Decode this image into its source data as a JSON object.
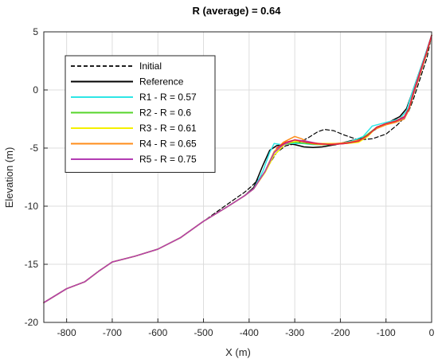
{
  "chart_data": {
    "type": "line",
    "title": "R (average) = 0.64",
    "xlabel": "X (m)",
    "ylabel": "Elevation (m)",
    "xlim": [
      -850,
      0
    ],
    "ylim": [
      -20,
      5
    ],
    "xticks": [
      -800,
      -700,
      -600,
      -500,
      -400,
      -300,
      -200,
      -100,
      0
    ],
    "yticks": [
      -20,
      -15,
      -10,
      -5,
      0,
      5
    ],
    "xtick_labels": [
      "-800",
      "-700",
      "-600",
      "-500",
      "-400",
      "-300",
      "-200",
      "-100",
      "0"
    ],
    "ytick_labels": [
      "-20",
      "-15",
      "-10",
      "-5",
      "0",
      "5"
    ],
    "grid": true,
    "legend_position": "top-left",
    "series": [
      {
        "name": "Initial",
        "color": "#000000",
        "dash": true,
        "width": 1.2,
        "points": [
          [
            -850,
            -18.3
          ],
          [
            -800,
            -17.1
          ],
          [
            -760,
            -16.5
          ],
          [
            -730,
            -15.6
          ],
          [
            -700,
            -14.8
          ],
          [
            -650,
            -14.3
          ],
          [
            -600,
            -13.7
          ],
          [
            -550,
            -12.7
          ],
          [
            -500,
            -11.3
          ],
          [
            -450,
            -9.9
          ],
          [
            -410,
            -8.8
          ],
          [
            -395,
            -8.3
          ],
          [
            -370,
            -7.3
          ],
          [
            -340,
            -5.4
          ],
          [
            -320,
            -4.8
          ],
          [
            -295,
            -4.6
          ],
          [
            -270,
            -4.1
          ],
          [
            -250,
            -3.6
          ],
          [
            -235,
            -3.4
          ],
          [
            -215,
            -3.5
          ],
          [
            -190,
            -3.9
          ],
          [
            -160,
            -4.3
          ],
          [
            -130,
            -4.2
          ],
          [
            -100,
            -3.8
          ],
          [
            -75,
            -3.0
          ],
          [
            -60,
            -2.4
          ],
          [
            -50,
            -1.8
          ],
          [
            -40,
            -0.8
          ],
          [
            -25,
            1.0
          ],
          [
            -10,
            2.8
          ],
          [
            0,
            4.7
          ]
        ]
      },
      {
        "name": "Reference",
        "color": "#000000",
        "dash": false,
        "width": 1.5,
        "points": [
          [
            -850,
            -18.3
          ],
          [
            -800,
            -17.1
          ],
          [
            -760,
            -16.5
          ],
          [
            -730,
            -15.6
          ],
          [
            -700,
            -14.8
          ],
          [
            -650,
            -14.3
          ],
          [
            -600,
            -13.7
          ],
          [
            -550,
            -12.7
          ],
          [
            -500,
            -11.3
          ],
          [
            -450,
            -10.1
          ],
          [
            -410,
            -9.1
          ],
          [
            -390,
            -8.4
          ],
          [
            -370,
            -6.5
          ],
          [
            -355,
            -5.2
          ],
          [
            -340,
            -4.8
          ],
          [
            -320,
            -4.6
          ],
          [
            -300,
            -4.7
          ],
          [
            -280,
            -4.9
          ],
          [
            -260,
            -4.95
          ],
          [
            -240,
            -4.9
          ],
          [
            -210,
            -4.7
          ],
          [
            -180,
            -4.4
          ],
          [
            -150,
            -4.1
          ],
          [
            -120,
            -3.3
          ],
          [
            -90,
            -2.7
          ],
          [
            -70,
            -2.3
          ],
          [
            -55,
            -1.6
          ],
          [
            -45,
            -0.5
          ],
          [
            -30,
            1.2
          ],
          [
            -15,
            2.9
          ],
          [
            0,
            4.7
          ]
        ]
      },
      {
        "name": "R1 - R = 0.57",
        "color": "#2ee6e6",
        "dash": false,
        "width": 1.5,
        "points": [
          [
            -850,
            -18.3
          ],
          [
            -800,
            -17.1
          ],
          [
            -760,
            -16.5
          ],
          [
            -730,
            -15.6
          ],
          [
            -700,
            -14.8
          ],
          [
            -650,
            -14.3
          ],
          [
            -600,
            -13.7
          ],
          [
            -550,
            -12.7
          ],
          [
            -500,
            -11.3
          ],
          [
            -450,
            -10.1
          ],
          [
            -410,
            -9.1
          ],
          [
            -390,
            -8.5
          ],
          [
            -370,
            -7.0
          ],
          [
            -355,
            -5.4
          ],
          [
            -345,
            -4.6
          ],
          [
            -330,
            -4.7
          ],
          [
            -310,
            -4.6
          ],
          [
            -285,
            -4.6
          ],
          [
            -260,
            -4.7
          ],
          [
            -230,
            -4.7
          ],
          [
            -200,
            -4.6
          ],
          [
            -175,
            -4.4
          ],
          [
            -150,
            -4.0
          ],
          [
            -130,
            -3.1
          ],
          [
            -110,
            -2.9
          ],
          [
            -90,
            -2.7
          ],
          [
            -70,
            -2.5
          ],
          [
            -55,
            -1.8
          ],
          [
            -45,
            -0.5
          ],
          [
            -30,
            1.2
          ],
          [
            -15,
            2.9
          ],
          [
            0,
            4.7
          ]
        ]
      },
      {
        "name": "R2 - R = 0.6",
        "color": "#55d52a",
        "dash": false,
        "width": 1.5,
        "points": [
          [
            -850,
            -18.3
          ],
          [
            -800,
            -17.1
          ],
          [
            -760,
            -16.5
          ],
          [
            -730,
            -15.6
          ],
          [
            -700,
            -14.8
          ],
          [
            -650,
            -14.3
          ],
          [
            -600,
            -13.7
          ],
          [
            -550,
            -12.7
          ],
          [
            -500,
            -11.3
          ],
          [
            -450,
            -10.1
          ],
          [
            -410,
            -9.1
          ],
          [
            -390,
            -8.5
          ],
          [
            -365,
            -7.0
          ],
          [
            -345,
            -5.3
          ],
          [
            -325,
            -4.7
          ],
          [
            -300,
            -4.5
          ],
          [
            -275,
            -4.6
          ],
          [
            -250,
            -4.7
          ],
          [
            -220,
            -4.7
          ],
          [
            -190,
            -4.6
          ],
          [
            -160,
            -4.4
          ],
          [
            -140,
            -3.8
          ],
          [
            -120,
            -3.2
          ],
          [
            -100,
            -2.9
          ],
          [
            -80,
            -2.7
          ],
          [
            -60,
            -2.5
          ],
          [
            -50,
            -1.7
          ],
          [
            -40,
            -0.4
          ],
          [
            -25,
            1.4
          ],
          [
            -12,
            3.0
          ],
          [
            0,
            4.7
          ]
        ]
      },
      {
        "name": "R3 - R = 0.61",
        "color": "#f5f000",
        "dash": false,
        "width": 1.5,
        "points": [
          [
            -850,
            -18.3
          ],
          [
            -800,
            -17.1
          ],
          [
            -760,
            -16.5
          ],
          [
            -730,
            -15.6
          ],
          [
            -700,
            -14.8
          ],
          [
            -650,
            -14.3
          ],
          [
            -600,
            -13.7
          ],
          [
            -550,
            -12.7
          ],
          [
            -500,
            -11.3
          ],
          [
            -450,
            -10.1
          ],
          [
            -410,
            -9.1
          ],
          [
            -390,
            -8.5
          ],
          [
            -365,
            -7.1
          ],
          [
            -345,
            -5.6
          ],
          [
            -320,
            -4.6
          ],
          [
            -295,
            -4.4
          ],
          [
            -270,
            -4.5
          ],
          [
            -245,
            -4.6
          ],
          [
            -215,
            -4.6
          ],
          [
            -185,
            -4.6
          ],
          [
            -160,
            -4.5
          ],
          [
            -140,
            -4.0
          ],
          [
            -120,
            -3.2
          ],
          [
            -100,
            -2.9
          ],
          [
            -80,
            -2.7
          ],
          [
            -60,
            -2.4
          ],
          [
            -50,
            -1.7
          ],
          [
            -40,
            -0.4
          ],
          [
            -25,
            1.4
          ],
          [
            -12,
            3.0
          ],
          [
            0,
            4.7
          ]
        ]
      },
      {
        "name": "R4 - R = 0.65",
        "color": "#ff8c1a",
        "dash": false,
        "width": 1.5,
        "points": [
          [
            -850,
            -18.3
          ],
          [
            -800,
            -17.1
          ],
          [
            -760,
            -16.5
          ],
          [
            -730,
            -15.6
          ],
          [
            -700,
            -14.8
          ],
          [
            -650,
            -14.3
          ],
          [
            -600,
            -13.7
          ],
          [
            -550,
            -12.7
          ],
          [
            -500,
            -11.3
          ],
          [
            -450,
            -10.1
          ],
          [
            -410,
            -9.1
          ],
          [
            -390,
            -8.5
          ],
          [
            -365,
            -7.0
          ],
          [
            -345,
            -5.3
          ],
          [
            -325,
            -4.5
          ],
          [
            -300,
            -4.0
          ],
          [
            -285,
            -4.2
          ],
          [
            -265,
            -4.6
          ],
          [
            -240,
            -4.7
          ],
          [
            -210,
            -4.6
          ],
          [
            -180,
            -4.5
          ],
          [
            -150,
            -4.2
          ],
          [
            -125,
            -3.4
          ],
          [
            -100,
            -3.0
          ],
          [
            -80,
            -2.8
          ],
          [
            -60,
            -2.5
          ],
          [
            -50,
            -1.7
          ],
          [
            -40,
            -0.4
          ],
          [
            -25,
            1.4
          ],
          [
            -12,
            3.0
          ],
          [
            0,
            4.7
          ]
        ]
      },
      {
        "name": "R5 - R = 0.75",
        "color": "#b33cb3",
        "dash": false,
        "width": 1.5,
        "points": [
          [
            -850,
            -18.3
          ],
          [
            -800,
            -17.1
          ],
          [
            -760,
            -16.5
          ],
          [
            -730,
            -15.6
          ],
          [
            -700,
            -14.8
          ],
          [
            -650,
            -14.3
          ],
          [
            -600,
            -13.7
          ],
          [
            -550,
            -12.7
          ],
          [
            -500,
            -11.3
          ],
          [
            -450,
            -10.1
          ],
          [
            -410,
            -9.1
          ],
          [
            -390,
            -8.5
          ],
          [
            -365,
            -7.0
          ],
          [
            -345,
            -5.4
          ],
          [
            -325,
            -4.7
          ],
          [
            -300,
            -4.3
          ],
          [
            -275,
            -4.4
          ],
          [
            -250,
            -4.6
          ],
          [
            -220,
            -4.7
          ],
          [
            -190,
            -4.6
          ],
          [
            -160,
            -4.4
          ],
          [
            -140,
            -3.9
          ],
          [
            -120,
            -3.2
          ],
          [
            -100,
            -2.9
          ],
          [
            -80,
            -2.7
          ],
          [
            -60,
            -2.4
          ],
          [
            -50,
            -1.6
          ],
          [
            -40,
            -0.3
          ],
          [
            -25,
            1.5
          ],
          [
            -12,
            3.1
          ],
          [
            0,
            4.7
          ]
        ]
      },
      {
        "name": "",
        "color": "#e8203a",
        "dash": false,
        "width": 1.5,
        "points": [
          [
            -340,
            -5.0
          ],
          [
            -320,
            -4.5
          ],
          [
            -300,
            -4.3
          ],
          [
            -275,
            -4.5
          ],
          [
            -250,
            -4.6
          ],
          [
            -220,
            -4.7
          ],
          [
            -190,
            -4.6
          ],
          [
            -160,
            -4.4
          ],
          [
            -140,
            -3.9
          ],
          [
            -120,
            -3.2
          ],
          [
            -100,
            -2.9
          ],
          [
            -80,
            -2.7
          ],
          [
            -60,
            -2.3
          ],
          [
            -50,
            -1.6
          ],
          [
            -40,
            -0.2
          ],
          [
            -25,
            1.6
          ],
          [
            -12,
            3.1
          ],
          [
            0,
            4.7
          ]
        ]
      }
    ]
  }
}
